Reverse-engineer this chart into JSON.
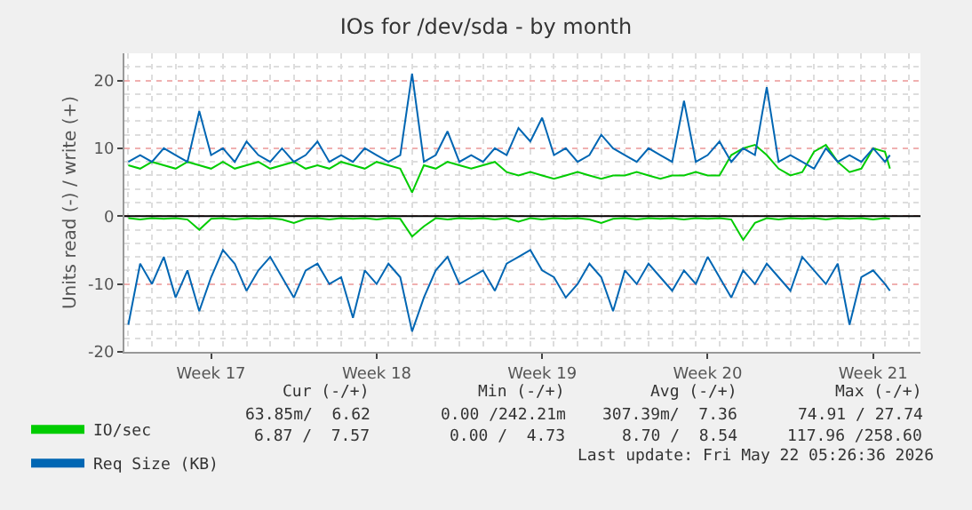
{
  "chart_data": {
    "type": "line",
    "title": "IOs for /dev/sda - by month",
    "ylabel": "Units read (-) / write (+)",
    "x": [
      "2026-04-20T00:00",
      "2026-04-20T12:00",
      "2026-04-21T00:00",
      "2026-04-21T12:00",
      "2026-04-22T00:00",
      "2026-04-22T12:00",
      "2026-04-23T00:00",
      "2026-04-23T12:00",
      "2026-04-24T00:00",
      "2026-04-24T12:00",
      "2026-04-25T00:00",
      "2026-04-25T12:00",
      "2026-04-26T00:00",
      "2026-04-26T12:00",
      "2026-04-27T00:00",
      "2026-04-27T12:00",
      "2026-04-28T00:00",
      "2026-04-28T12:00",
      "2026-04-29T00:00",
      "2026-04-29T12:00",
      "2026-04-30T00:00",
      "2026-04-30T12:00",
      "2026-05-01T00:00",
      "2026-05-01T12:00",
      "2026-05-02T00:00",
      "2026-05-02T12:00",
      "2026-05-03T00:00",
      "2026-05-03T12:00",
      "2026-05-04T00:00",
      "2026-05-04T12:00",
      "2026-05-05T00:00",
      "2026-05-05T12:00",
      "2026-05-06T00:00",
      "2026-05-06T12:00",
      "2026-05-07T00:00",
      "2026-05-07T12:00",
      "2026-05-08T00:00",
      "2026-05-08T12:00",
      "2026-05-09T00:00",
      "2026-05-09T12:00",
      "2026-05-10T00:00",
      "2026-05-10T12:00",
      "2026-05-11T00:00",
      "2026-05-11T12:00",
      "2026-05-12T00:00",
      "2026-05-12T12:00",
      "2026-05-13T00:00",
      "2026-05-13T12:00",
      "2026-05-14T00:00",
      "2026-05-14T12:00",
      "2026-05-15T00:00",
      "2026-05-15T12:00",
      "2026-05-16T00:00",
      "2026-05-16T12:00",
      "2026-05-17T00:00",
      "2026-05-17T12:00",
      "2026-05-18T00:00",
      "2026-05-18T12:00",
      "2026-05-19T00:00",
      "2026-05-19T12:00",
      "2026-05-20T00:00",
      "2026-05-20T12:00",
      "2026-05-21T00:00",
      "2026-05-21T12:00",
      "2026-05-22T00:00",
      "2026-05-22T05:00"
    ],
    "series": [
      {
        "color": "#00cc00",
        "values": [
          -0.3,
          -0.5,
          -0.3,
          -0.4,
          -0.3,
          -0.5,
          -2,
          -0.4,
          -0.3,
          -0.5,
          -0.3,
          -0.4,
          -0.3,
          -0.5,
          -1,
          -0.4,
          -0.3,
          -0.5,
          -0.3,
          -0.4,
          -0.3,
          -0.5,
          -0.3,
          -0.4,
          -3,
          -1.5,
          -0.3,
          -0.5,
          -0.3,
          -0.4,
          -0.3,
          -0.5,
          -0.3,
          -0.8,
          -0.3,
          -0.5,
          -0.3,
          -0.4,
          -0.3,
          -0.5,
          -1,
          -0.4,
          -0.3,
          -0.5,
          -0.3,
          -0.4,
          -0.3,
          -0.5,
          -0.3,
          -0.4,
          -0.3,
          -0.5,
          -3.5,
          -1,
          -0.3,
          -0.5,
          -0.3,
          -0.4,
          -0.3,
          -0.5,
          -0.3,
          -0.4,
          -0.3,
          -0.5,
          -0.3,
          -0.4
        ]
      },
      {
        "name": "IO/sec",
        "color": "#00cc00",
        "values": [
          7.5,
          7,
          8,
          7.5,
          7,
          8,
          7.5,
          7,
          8,
          7,
          7.5,
          8,
          7,
          7.5,
          8,
          7,
          7.5,
          7,
          8,
          7.5,
          7,
          8,
          7.5,
          7,
          3.5,
          7.5,
          7,
          8,
          7.5,
          7,
          7.5,
          8,
          6.5,
          6,
          6.5,
          6,
          5.5,
          6,
          6.5,
          6,
          5.5,
          6,
          6,
          6.5,
          6,
          5.5,
          6,
          6,
          6.5,
          6,
          6,
          9,
          10,
          10.5,
          9,
          7,
          6,
          6.5,
          9.5,
          10.5,
          8,
          6.5,
          7,
          10,
          9.5,
          7
        ]
      },
      {
        "color": "#0066b3",
        "values": [
          -16,
          -7,
          -10,
          -6,
          -12,
          -8,
          -14,
          -9,
          -5,
          -7,
          -11,
          -8,
          -6,
          -9,
          -12,
          -8,
          -7,
          -10,
          -9,
          -15,
          -8,
          -10,
          -7,
          -9,
          -17,
          -12,
          -8,
          -6,
          -10,
          -9,
          -8,
          -11,
          -7,
          -6,
          -5,
          -8,
          -9,
          -12,
          -10,
          -7,
          -9,
          -14,
          -8,
          -10,
          -7,
          -9,
          -11,
          -8,
          -10,
          -6,
          -9,
          -12,
          -8,
          -10,
          -7,
          -9,
          -11,
          -6,
          -8,
          -10,
          -7,
          -16,
          -9,
          -8,
          -10,
          -11
        ]
      },
      {
        "name": "Req Size (KB)",
        "color": "#0066b3",
        "values": [
          8,
          9,
          8,
          10,
          9,
          8,
          15.5,
          9,
          10,
          8,
          11,
          9,
          8,
          10,
          8,
          9,
          11,
          8,
          9,
          8,
          10,
          9,
          8,
          9,
          21,
          8,
          9,
          12.5,
          8,
          9,
          8,
          10,
          9,
          13,
          11,
          14.5,
          9,
          10,
          8,
          9,
          12,
          10,
          9,
          8,
          10,
          9,
          8,
          17,
          8,
          9,
          11,
          8,
          10,
          9,
          19,
          8,
          9,
          8,
          7,
          10,
          8,
          9,
          8,
          10,
          8,
          9
        ]
      }
    ],
    "xlim": [
      "2026-04-19T20:00",
      "2026-05-23T12:00"
    ],
    "xticks": [
      {
        "value": "2026-04-23T12:00",
        "label": "Week 17"
      },
      {
        "value": "2026-04-30T12:00",
        "label": "Week 18"
      },
      {
        "value": "2026-05-07T12:00",
        "label": "Week 19"
      },
      {
        "value": "2026-05-14T12:00",
        "label": "Week 20"
      },
      {
        "value": "2026-05-21T12:00",
        "label": "Week 21"
      }
    ],
    "ylim": [
      -20,
      24
    ],
    "yticks": [
      -20,
      -10,
      0,
      10,
      20
    ],
    "ref_lines": [
      {
        "axis": "y",
        "value": 0,
        "color": "#000000"
      }
    ],
    "grid": true,
    "legend": "bottom",
    "marker": "none",
    "line_style": "solid",
    "annotations": [
      "Cur (-/+)",
      "Min (-/+)",
      "Avg (-/+)",
      "Max (-/+)",
      "63.85m/  6.62",
      "0.00 /242.21m",
      "307.39m/  7.36",
      "74.91 / 27.74",
      "6.87 /  7.57",
      "0.00 /  4.73",
      "8.70 /  8.54",
      "117.96 /258.60",
      "Last update: Fri May 22 05:26:36 2026"
    ]
  }
}
